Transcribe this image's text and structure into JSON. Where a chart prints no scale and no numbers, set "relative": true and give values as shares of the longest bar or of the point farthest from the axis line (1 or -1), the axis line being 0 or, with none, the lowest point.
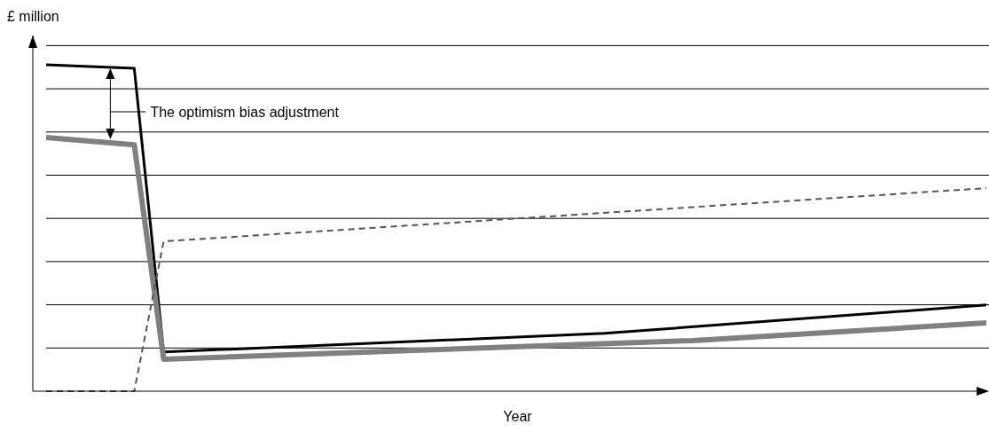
{
  "chart_data": {
    "type": "line",
    "relative": true,
    "ylabel": "£ million",
    "xlabel": "Year",
    "grid": "y",
    "annotations": [
      "The optimism bias adjustment"
    ],
    "categories": [
      null,
      null,
      null,
      null,
      null,
      null,
      null,
      null,
      null,
      null,
      null,
      null,
      null,
      null,
      null,
      null,
      null,
      null,
      null,
      null,
      null,
      null,
      null,
      null,
      null,
      null,
      null,
      null,
      null,
      null,
      null,
      null,
      null
    ],
    "series": [
      {
        "color": "#000000",
        "line_style": "solid",
        "values": [
          1,
          null,
          null,
          0.989,
          0.12,
          null,
          null,
          null,
          null,
          null,
          null,
          null,
          null,
          null,
          null,
          null,
          null,
          null,
          null,
          0.177,
          null,
          null,
          null,
          null,
          null,
          null,
          null,
          null,
          null,
          null,
          null,
          null,
          0.264
        ]
      },
      {
        "color": "#808080",
        "line_style": "solid",
        "values": [
          0.777,
          null,
          null,
          0.755,
          0.098,
          null,
          null,
          null,
          null,
          null,
          null,
          null,
          null,
          null,
          null,
          null,
          null,
          null,
          null,
          null,
          null,
          null,
          0.155,
          null,
          null,
          null,
          null,
          null,
          null,
          null,
          null,
          null,
          0.209
        ]
      },
      {
        "color": "#555555",
        "line_style": "dashed",
        "values": [
          0,
          null,
          null,
          0,
          0.459,
          null,
          null,
          null,
          null,
          null,
          null,
          null,
          null,
          null,
          null,
          null,
          null,
          null,
          null,
          null,
          null,
          null,
          null,
          null,
          null,
          null,
          null,
          null,
          null,
          null,
          null,
          null,
          0.622
        ]
      }
    ]
  }
}
